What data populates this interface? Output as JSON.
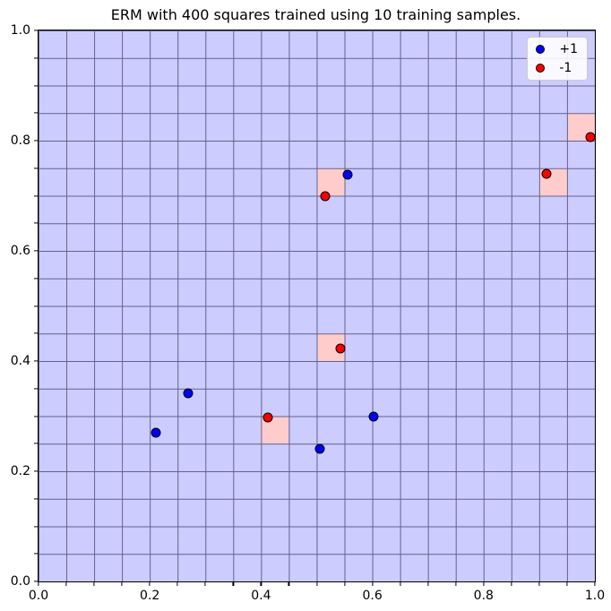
{
  "title": "ERM with 400 squares trained using 10 training samples.",
  "legend": {
    "position": "upper right",
    "entries": [
      {
        "label": "+1",
        "marker_color": "#0000ff"
      },
      {
        "label": "-1",
        "marker_color": "#ff0000"
      }
    ]
  },
  "axes": {
    "x_tick_labels": [
      "0.0",
      "0.2",
      "0.4",
      "0.6",
      "0.8",
      "1.0"
    ],
    "y_tick_labels": [
      "0.0",
      "0.2",
      "0.4",
      "0.6",
      "0.8",
      "1.0"
    ],
    "minor_tick_step": 0.05
  },
  "colors": {
    "region_positive": "#ccccff",
    "region_negative": "#ffcccc",
    "grid_line": "#62628a",
    "axis_line": "#000000",
    "marker_positive": "#0000ff",
    "marker_negative": "#ff0000",
    "marker_edge": "#000000",
    "legend_bg": "#ffffff",
    "legend_border": "#cccccc"
  },
  "chart_data": {
    "type": "scatter",
    "title": "ERM with 400 squares trained using 10 training samples.",
    "xlim": [
      0,
      1
    ],
    "ylim": [
      0,
      1
    ],
    "x_ticks": [
      0.0,
      0.2,
      0.4,
      0.6,
      0.8,
      1.0
    ],
    "y_ticks": [
      0.0,
      0.2,
      0.4,
      0.6,
      0.8,
      1.0
    ],
    "grid": true,
    "grid_divisions": 20,
    "cell_size": 0.05,
    "legend_position": "upper right",
    "series": [
      {
        "name": "+1",
        "color": "#0000ff",
        "points": [
          [
            0.211,
            0.27
          ],
          [
            0.269,
            0.342
          ],
          [
            0.505,
            0.241
          ],
          [
            0.602,
            0.299
          ],
          [
            0.555,
            0.738
          ]
        ]
      },
      {
        "name": "-1",
        "color": "#ff0000",
        "points": [
          [
            0.413,
            0.298
          ],
          [
            0.543,
            0.423
          ],
          [
            0.516,
            0.7
          ],
          [
            0.913,
            0.74
          ],
          [
            0.992,
            0.806
          ]
        ]
      }
    ],
    "negative_region_cells": [
      {
        "x0": 0.4,
        "y0": 0.25
      },
      {
        "x0": 0.5,
        "y0": 0.4
      },
      {
        "x0": 0.5,
        "y0": 0.7
      },
      {
        "x0": 0.9,
        "y0": 0.7
      },
      {
        "x0": 0.95,
        "y0": 0.8
      }
    ]
  }
}
